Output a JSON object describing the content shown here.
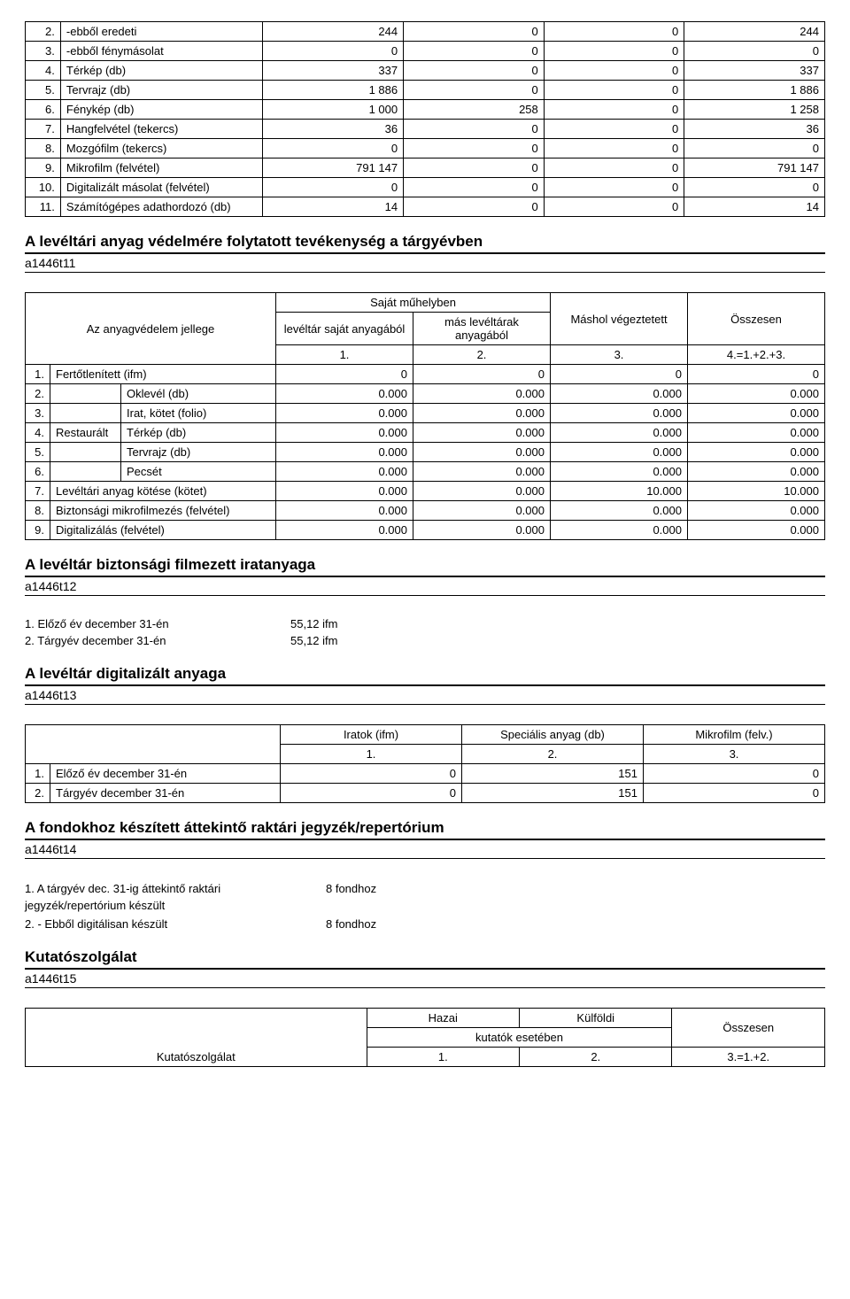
{
  "table1": {
    "rows": [
      {
        "n": "2.",
        "label": "-ebből eredeti",
        "v": [
          "244",
          "0",
          "0",
          "244"
        ]
      },
      {
        "n": "3.",
        "label": "-ebből fénymásolat",
        "v": [
          "0",
          "0",
          "0",
          "0"
        ]
      },
      {
        "n": "4.",
        "label": "Térkép (db)",
        "v": [
          "337",
          "0",
          "0",
          "337"
        ]
      },
      {
        "n": "5.",
        "label": "Tervrajz (db)",
        "v": [
          "1 886",
          "0",
          "0",
          "1 886"
        ]
      },
      {
        "n": "6.",
        "label": "Fénykép (db)",
        "v": [
          "1 000",
          "258",
          "0",
          "1 258"
        ]
      },
      {
        "n": "7.",
        "label": "Hangfelvétel (tekercs)",
        "v": [
          "36",
          "0",
          "0",
          "36"
        ]
      },
      {
        "n": "8.",
        "label": "Mozgófilm (tekercs)",
        "v": [
          "0",
          "0",
          "0",
          "0"
        ]
      },
      {
        "n": "9.",
        "label": "Mikrofilm (felvétel)",
        "v": [
          "791 147",
          "0",
          "0",
          "791 147"
        ]
      },
      {
        "n": "10.",
        "label": "Digitalizált másolat (felvétel)",
        "v": [
          "0",
          "0",
          "0",
          "0"
        ]
      },
      {
        "n": "11.",
        "label": "Számítógépes adathordozó (db)",
        "v": [
          "14",
          "0",
          "0",
          "14"
        ]
      }
    ]
  },
  "sec1": {
    "title": "A levéltári anyag védelmére folytatott tevékenység a tárgyévben",
    "code": "a1446t11"
  },
  "table2": {
    "rowhead": "Az anyagvédelem jellege",
    "top": "Saját műhelyben",
    "col1": "levéltár saját anyagából",
    "col2": "más levéltárak anyagából",
    "col3": "Máshol végeztetett",
    "col4": "Összesen",
    "nums": [
      "1.",
      "2.",
      "3.",
      "4.=1.+2.+3."
    ],
    "rows": [
      {
        "n": "1.",
        "a": "Fertőtlenített (ifm)",
        "b": "",
        "v": [
          "0",
          "0",
          "0",
          "0"
        ]
      },
      {
        "n": "2.",
        "a": "",
        "b": "Oklevél (db)",
        "v": [
          "0.000",
          "0.000",
          "0.000",
          "0.000"
        ]
      },
      {
        "n": "3.",
        "a": "",
        "b": "Irat, kötet (folio)",
        "v": [
          "0.000",
          "0.000",
          "0.000",
          "0.000"
        ]
      },
      {
        "n": "4.",
        "a": "Restaurált",
        "b": "Térkép (db)",
        "v": [
          "0.000",
          "0.000",
          "0.000",
          "0.000"
        ]
      },
      {
        "n": "5.",
        "a": "",
        "b": "Tervrajz (db)",
        "v": [
          "0.000",
          "0.000",
          "0.000",
          "0.000"
        ]
      },
      {
        "n": "6.",
        "a": "",
        "b": "Pecsét",
        "v": [
          "0.000",
          "0.000",
          "0.000",
          "0.000"
        ]
      },
      {
        "n": "7.",
        "a": "Levéltári anyag kötése (kötet)",
        "b": "",
        "v": [
          "0.000",
          "0.000",
          "10.000",
          "10.000"
        ]
      },
      {
        "n": "8.",
        "a": "Biztonsági mikrofilmezés (felvétel)",
        "b": "",
        "v": [
          "0.000",
          "0.000",
          "0.000",
          "0.000"
        ]
      },
      {
        "n": "9.",
        "a": "Digitalizálás (felvétel)",
        "b": "",
        "v": [
          "0.000",
          "0.000",
          "0.000",
          "0.000"
        ]
      }
    ]
  },
  "sec2": {
    "title": "A levéltár biztonsági filmezett iratanyaga",
    "code": "a1446t12"
  },
  "list1": [
    {
      "label": "1. Előző év december 31-én",
      "val": "55,12 ifm"
    },
    {
      "label": "2. Tárgyév december 31-én",
      "val": "55,12 ifm"
    }
  ],
  "sec3": {
    "title": "A levéltár digitalizált anyaga",
    "code": "a1446t13"
  },
  "table4": {
    "cols": [
      "Iratok (ifm)",
      "Speciális anyag (db)",
      "Mikrofilm (felv.)"
    ],
    "nums": [
      "1.",
      "2.",
      "3."
    ],
    "rows": [
      {
        "n": "1.",
        "label": "Előző év december 31-én",
        "v": [
          "0",
          "151",
          "0"
        ]
      },
      {
        "n": "2.",
        "label": "Tárgyév december 31-én",
        "v": [
          "0",
          "151",
          "0"
        ]
      }
    ]
  },
  "sec4": {
    "title": "A fondokhoz készített áttekintő raktári jegyzék/repertórium",
    "code": "a1446t14"
  },
  "list2": [
    {
      "label": "1. A tárgyév dec. 31-ig áttekintő raktári jegyzék/repertórium készült",
      "val": "8 fondhoz"
    },
    {
      "label": "2. - Ebből digitálisan készült",
      "val": "8 fondhoz"
    }
  ],
  "sec5": {
    "title": "Kutatószolgálat",
    "code": "a1446t15"
  },
  "table5": {
    "rowhead": "Kutatószolgálat",
    "c1": "Hazai",
    "c2": "Külföldi",
    "sub": "kutatók esetében",
    "c3": "Összesen",
    "nums": [
      "1.",
      "2.",
      "3.=1.+2."
    ]
  }
}
